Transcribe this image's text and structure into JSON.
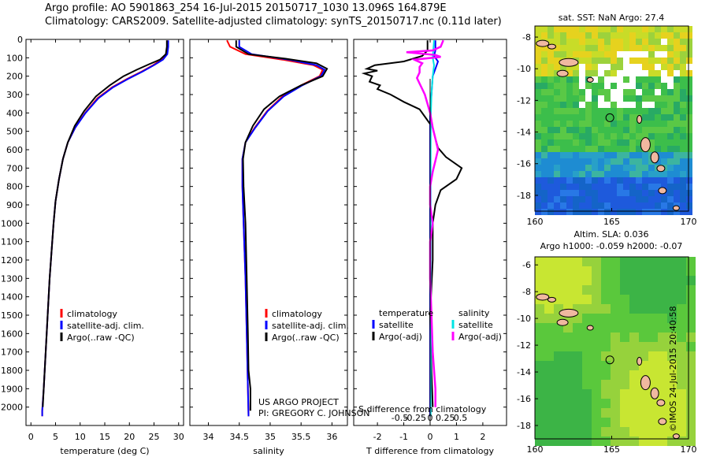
{
  "header": {
    "line1": "Argo profile: AO 5901863_254 16-Jul-2015 20150717_1030 13.096S 164.879E",
    "line2": "Climatology: CARS2009. Satellite-adjusted climatology: synTS_20150717.nc (0.11d later)"
  },
  "credit": "©IMOS 24-Jul-2015 20:40:58",
  "colors": {
    "climatology": "#ff0000",
    "satellite": "#0000ff",
    "argo": "#000000",
    "sal_satellite": "#00e5e5",
    "sal_argo": "#ff00ff",
    "land": "#f0b8a0"
  },
  "chart_data": [
    {
      "type": "line",
      "id": "temperature",
      "xlabel": "temperature (deg C)",
      "ylabel": "",
      "xlim": [
        -1,
        31
      ],
      "ylim": [
        2100,
        0
      ],
      "xticks": [
        0,
        5,
        10,
        15,
        20,
        25,
        30
      ],
      "yticks": [
        0,
        100,
        200,
        300,
        400,
        500,
        600,
        700,
        800,
        900,
        1000,
        1100,
        1200,
        1300,
        1400,
        1500,
        1600,
        1700,
        1800,
        1900,
        2000
      ],
      "legend": [
        "climatology",
        "satellite-adj. clim.",
        "Argo(..raw -QC)"
      ],
      "series": [
        {
          "name": "climatology",
          "color": "#ff0000",
          "points": [
            [
              27.7,
              5
            ],
            [
              27.7,
              40
            ],
            [
              27.5,
              80
            ],
            [
              26.5,
              110
            ],
            [
              24.8,
              140
            ],
            [
              22.5,
              175
            ],
            [
              19.5,
              215
            ],
            [
              16.5,
              260
            ],
            [
              13.5,
              320
            ],
            [
              11.0,
              400
            ],
            [
              9.0,
              480
            ],
            [
              7.5,
              560
            ],
            [
              6.5,
              650
            ],
            [
              5.7,
              760
            ],
            [
              5.0,
              880
            ],
            [
              4.6,
              1000
            ],
            [
              4.2,
              1150
            ],
            [
              3.8,
              1300
            ],
            [
              3.4,
              1500
            ],
            [
              3.0,
              1700
            ],
            [
              2.6,
              1900
            ],
            [
              2.3,
              2020
            ],
            [
              2.3,
              2050
            ]
          ]
        },
        {
          "name": "satellite-adj. clim.",
          "color": "#0000ff",
          "points": [
            [
              27.9,
              5
            ],
            [
              27.9,
              40
            ],
            [
              27.7,
              80
            ],
            [
              26.8,
              110
            ],
            [
              25.0,
              140
            ],
            [
              22.7,
              175
            ],
            [
              19.7,
              215
            ],
            [
              16.7,
              260
            ],
            [
              13.7,
              320
            ],
            [
              11.1,
              400
            ],
            [
              9.0,
              480
            ],
            [
              7.5,
              560
            ],
            [
              6.5,
              650
            ],
            [
              5.7,
              760
            ],
            [
              5.0,
              880
            ],
            [
              4.6,
              1000
            ],
            [
              4.2,
              1150
            ],
            [
              3.8,
              1300
            ],
            [
              3.4,
              1500
            ],
            [
              3.0,
              1700
            ],
            [
              2.6,
              1900
            ],
            [
              2.3,
              2020
            ],
            [
              2.3,
              2050
            ]
          ]
        },
        {
          "name": "Argo(..raw -QC)",
          "color": "#000000",
          "points": [
            [
              27.6,
              5
            ],
            [
              27.6,
              40
            ],
            [
              27.4,
              80
            ],
            [
              26.2,
              110
            ],
            [
              24.0,
              135
            ],
            [
              21.5,
              165
            ],
            [
              18.8,
              200
            ],
            [
              16.0,
              250
            ],
            [
              13.2,
              310
            ],
            [
              10.8,
              390
            ],
            [
              8.9,
              470
            ],
            [
              7.5,
              560
            ],
            [
              6.5,
              650
            ],
            [
              5.7,
              760
            ],
            [
              5.0,
              880
            ],
            [
              4.6,
              1000
            ],
            [
              4.2,
              1150
            ],
            [
              3.8,
              1300
            ],
            [
              3.4,
              1500
            ],
            [
              3.0,
              1700
            ],
            [
              2.6,
              1900
            ],
            [
              2.4,
              2000
            ]
          ]
        }
      ]
    },
    {
      "type": "line",
      "id": "salinity",
      "xlabel": "salinity",
      "ylabel": "",
      "xlim": [
        33.7,
        36.25
      ],
      "ylim": [
        2100,
        0
      ],
      "xticks": [
        34,
        34.5,
        35,
        35.5,
        36
      ],
      "legend": [
        "climatology",
        "satellite-adj. clim.",
        "Argo(..raw -QC)"
      ],
      "annotation": [
        "US ARGO PROJECT",
        "PI: GREGORY C. JOHNSON"
      ],
      "series": [
        {
          "name": "climatology",
          "color": "#ff0000",
          "points": [
            [
              34.3,
              5
            ],
            [
              34.35,
              40
            ],
            [
              34.6,
              80
            ],
            [
              35.2,
              110
            ],
            [
              35.7,
              140
            ],
            [
              35.85,
              165
            ],
            [
              35.8,
              200
            ],
            [
              35.5,
              250
            ],
            [
              35.2,
              310
            ],
            [
              34.95,
              390
            ],
            [
              34.75,
              480
            ],
            [
              34.6,
              560
            ],
            [
              34.55,
              650
            ],
            [
              34.55,
              800
            ],
            [
              34.57,
              1000
            ],
            [
              34.6,
              1300
            ],
            [
              34.62,
              1600
            ],
            [
              34.64,
              1900
            ],
            [
              34.65,
              2050
            ]
          ]
        },
        {
          "name": "satellite-adj. clim.",
          "color": "#0000ff",
          "points": [
            [
              34.5,
              5
            ],
            [
              34.5,
              40
            ],
            [
              34.7,
              80
            ],
            [
              35.3,
              110
            ],
            [
              35.75,
              140
            ],
            [
              35.88,
              165
            ],
            [
              35.82,
              200
            ],
            [
              35.52,
              250
            ],
            [
              35.22,
              310
            ],
            [
              34.96,
              390
            ],
            [
              34.76,
              480
            ],
            [
              34.6,
              560
            ],
            [
              34.55,
              650
            ],
            [
              34.55,
              800
            ],
            [
              34.57,
              1000
            ],
            [
              34.6,
              1300
            ],
            [
              34.62,
              1600
            ],
            [
              34.64,
              1900
            ],
            [
              34.65,
              2050
            ]
          ]
        },
        {
          "name": "Argo(..raw -QC)",
          "color": "#000000",
          "points": [
            [
              34.45,
              5
            ],
            [
              34.45,
              40
            ],
            [
              34.65,
              80
            ],
            [
              35.25,
              105
            ],
            [
              35.75,
              130
            ],
            [
              35.92,
              160
            ],
            [
              35.85,
              200
            ],
            [
              35.5,
              250
            ],
            [
              35.15,
              310
            ],
            [
              34.9,
              380
            ],
            [
              34.72,
              470
            ],
            [
              34.6,
              560
            ],
            [
              34.56,
              650
            ],
            [
              34.57,
              800
            ],
            [
              34.6,
              1000
            ],
            [
              34.62,
              1300
            ],
            [
              34.64,
              1600
            ],
            [
              34.65,
              1800
            ],
            [
              34.68,
              1900
            ],
            [
              34.68,
              2020
            ]
          ]
        }
      ]
    },
    {
      "type": "line",
      "id": "difference",
      "xlabel": "T difference from climatology",
      "xlabel_top": "S difference from climatology",
      "xlim": [
        -2.9,
        2.9
      ],
      "ylim": [
        2100,
        0
      ],
      "xticks": [
        -2,
        -1,
        0,
        1,
        2
      ],
      "xtick_labels_top": [
        "-0.5",
        "-0.25",
        "0",
        "0.25",
        "0.5"
      ],
      "xticks_top": [
        -0.5,
        -0.25,
        0,
        0.25,
        0.5
      ],
      "legend_left": [
        "temperature",
        "satellite",
        "Argo(-adj)"
      ],
      "legend_right": [
        "salinity",
        "satellite",
        "Argo(-adj)"
      ],
      "series": [
        {
          "name": "T satellite",
          "color": "#0000ff",
          "points": [
            [
              0.2,
              5
            ],
            [
              0.2,
              60
            ],
            [
              0.15,
              90
            ],
            [
              0.3,
              120
            ],
            [
              0.2,
              160
            ],
            [
              0.1,
              200
            ],
            [
              0.05,
              300
            ],
            [
              0.0,
              400
            ],
            [
              0.0,
              600
            ],
            [
              0.0,
              1000
            ],
            [
              0.0,
              1500
            ],
            [
              0.0,
              2050
            ]
          ]
        },
        {
          "name": "T Argo(-adj)",
          "color": "#000000",
          "points": [
            [
              -0.1,
              5
            ],
            [
              -0.1,
              60
            ],
            [
              -0.3,
              90
            ],
            [
              -1.0,
              120
            ],
            [
              -2.1,
              140
            ],
            [
              -2.4,
              160
            ],
            [
              -2.0,
              170
            ],
            [
              -2.5,
              185
            ],
            [
              -2.2,
              200
            ],
            [
              -2.3,
              230
            ],
            [
              -1.9,
              250
            ],
            [
              -2.0,
              270
            ],
            [
              -1.5,
              300
            ],
            [
              -1.0,
              340
            ],
            [
              -0.4,
              380
            ],
            [
              -0.2,
              420
            ],
            [
              0.1,
              480
            ],
            [
              0.2,
              540
            ],
            [
              0.3,
              590
            ],
            [
              0.6,
              640
            ],
            [
              1.2,
              700
            ],
            [
              1.0,
              760
            ],
            [
              0.4,
              820
            ],
            [
              0.2,
              900
            ],
            [
              0.1,
              1000
            ],
            [
              0.1,
              1200
            ],
            [
              0.0,
              1500
            ],
            [
              0.05,
              1800
            ],
            [
              0.1,
              2000
            ]
          ]
        },
        {
          "name": "S satellite",
          "color": "#00e5e5",
          "points": [
            [
              0.15,
              5
            ],
            [
              0.12,
              60
            ],
            [
              0.1,
              100
            ],
            [
              0.15,
              140
            ],
            [
              0.1,
              200
            ],
            [
              0.05,
              300
            ],
            [
              0.03,
              400
            ],
            [
              0.02,
              600
            ],
            [
              0.02,
              1000
            ],
            [
              0.02,
              1500
            ],
            [
              0.02,
              2050
            ]
          ]
        },
        {
          "name": "S Argo(-adj)",
          "color": "#ff00ff",
          "points": [
            [
              0.5,
              5
            ],
            [
              0.4,
              40
            ],
            [
              0.1,
              60
            ],
            [
              -0.9,
              70
            ],
            [
              0.2,
              85
            ],
            [
              0.4,
              95
            ],
            [
              -0.6,
              110
            ],
            [
              -0.3,
              130
            ],
            [
              -0.4,
              150
            ],
            [
              -0.4,
              180
            ],
            [
              -0.5,
              210
            ],
            [
              -0.4,
              240
            ],
            [
              -0.3,
              270
            ],
            [
              -0.2,
              300
            ],
            [
              0.0,
              400
            ],
            [
              0.1,
              480
            ],
            [
              0.2,
              540
            ],
            [
              0.3,
              600
            ],
            [
              0.2,
              660
            ],
            [
              0.1,
              720
            ],
            [
              0.0,
              800
            ],
            [
              0.0,
              900
            ],
            [
              0.1,
              1000
            ],
            [
              0.0,
              1100
            ],
            [
              0.0,
              1300
            ],
            [
              0.05,
              1500
            ],
            [
              0.1,
              1700
            ],
            [
              0.2,
              1900
            ],
            [
              0.2,
              2000
            ]
          ]
        }
      ]
    },
    {
      "type": "heatmap",
      "id": "sst-map",
      "title": "sat. SST: NaN Argo: 27.4",
      "xlim": [
        160,
        170
      ],
      "ylim": [
        -19,
        -7.3
      ],
      "xticks": [
        160,
        165,
        170
      ],
      "yticks": [
        -8,
        -10,
        -12,
        -14,
        -16,
        -18
      ],
      "marker": {
        "lon": 164.879,
        "lat": -13.096
      }
    },
    {
      "type": "heatmap",
      "id": "sla-map",
      "title": "Altim. SLA: 0.036",
      "subtitle": "Argo h1000: -0.059 h2000: -0.07",
      "xlim": [
        160,
        170
      ],
      "ylim": [
        -19,
        -5.4
      ],
      "xticks": [
        160,
        165,
        170
      ],
      "yticks": [
        -6,
        -8,
        -10,
        -12,
        -14,
        -16,
        -18
      ],
      "marker": {
        "lon": 164.879,
        "lat": -13.096
      }
    }
  ]
}
